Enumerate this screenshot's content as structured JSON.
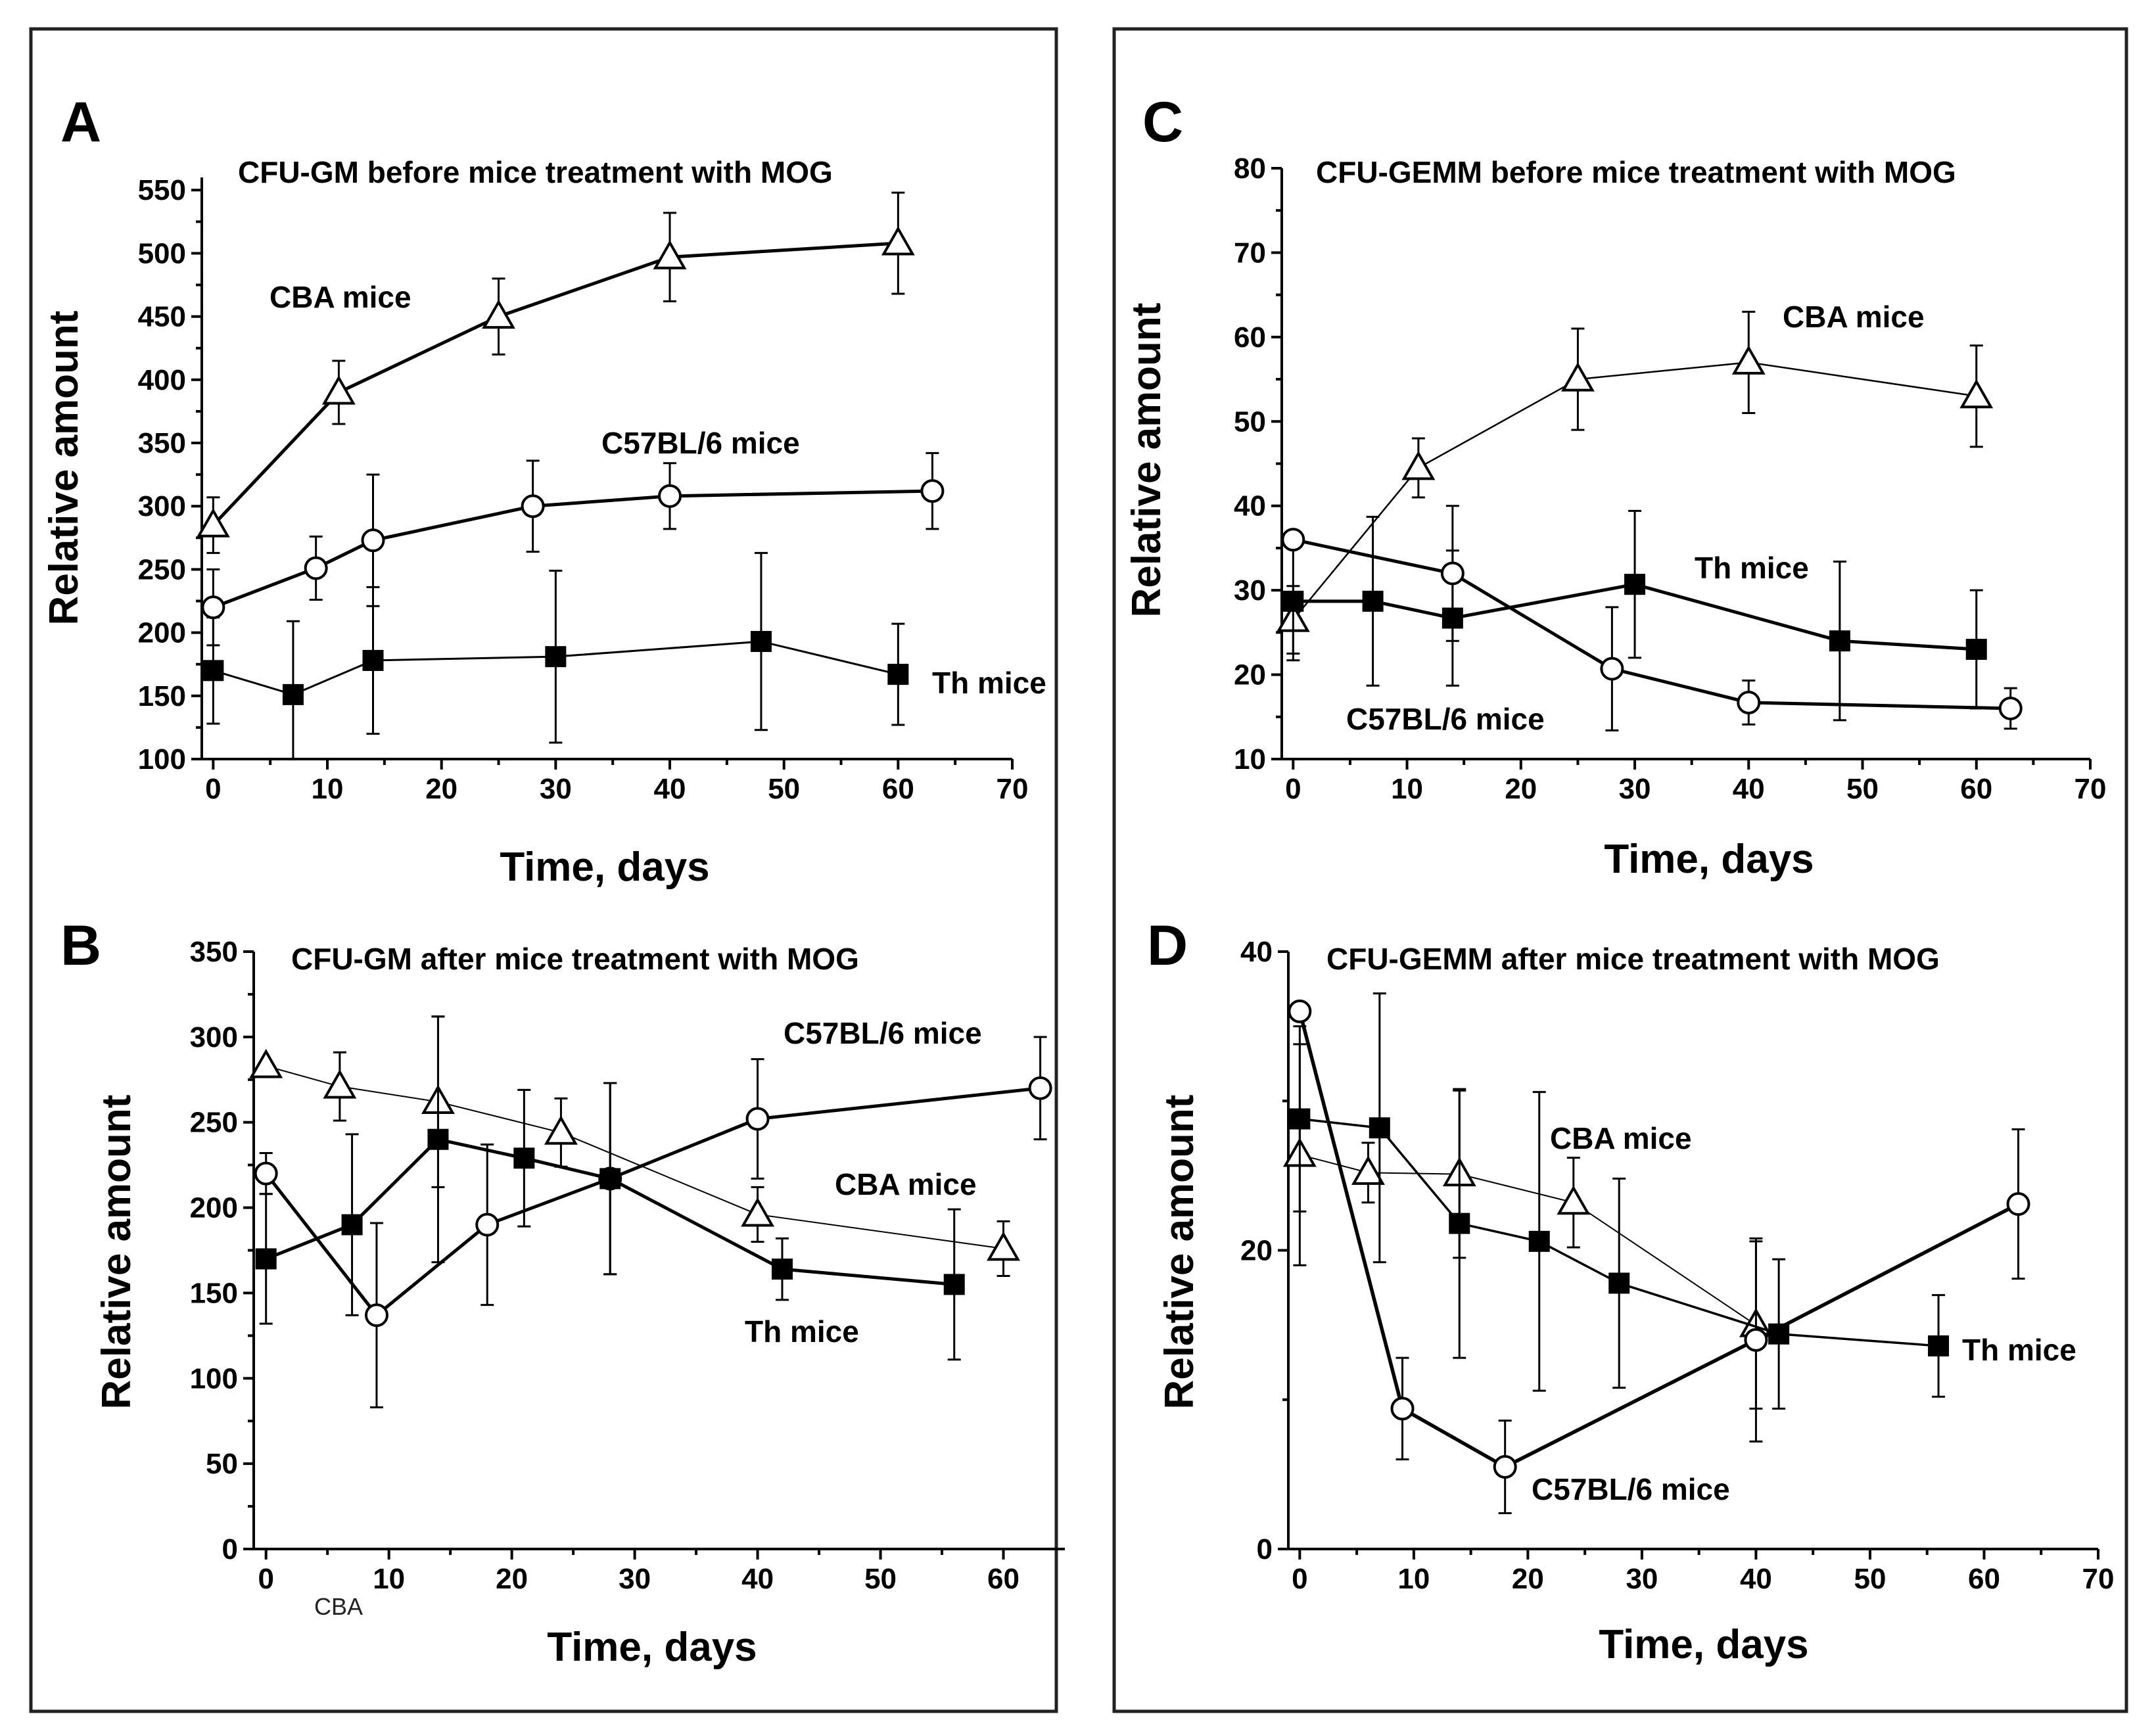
{
  "colors": {
    "ink": "#000000",
    "frame": "#222222",
    "marker_fill_open": "#ffffff",
    "marker_fill_solid": "#000000"
  },
  "chart_data": [
    {
      "panel": "A",
      "type": "line",
      "title": "CFU-GM before  mice treatment with MOG",
      "xlabel": "Time, days",
      "ylabel": "Relative amount",
      "xlim": [
        -1,
        70
      ],
      "ylim": [
        100,
        560
      ],
      "xticks": [
        0,
        10,
        20,
        30,
        40,
        50,
        60,
        70
      ],
      "yticks": [
        100,
        150,
        200,
        250,
        300,
        350,
        400,
        450,
        500,
        550
      ],
      "series": [
        {
          "name": "CBA mice",
          "marker": "triangle-open",
          "linewidth": 5,
          "x": [
            0,
            11,
            25,
            40,
            60
          ],
          "y": [
            285,
            390,
            450,
            497,
            508
          ],
          "err": [
            22,
            25,
            30,
            35,
            40
          ]
        },
        {
          "name": "C57BL/6 mice",
          "marker": "circle-open",
          "linewidth": 5,
          "x": [
            0,
            9,
            14,
            28,
            40,
            63
          ],
          "y": [
            220,
            251,
            273,
            300,
            308,
            312
          ],
          "err": [
            30,
            25,
            52,
            36,
            26,
            30
          ]
        },
        {
          "name": "Th mice",
          "marker": "square-filled",
          "linewidth": 3,
          "x": [
            0,
            7,
            14,
            30,
            48,
            60
          ],
          "y": [
            170,
            151,
            178,
            181,
            193,
            167
          ],
          "err": [
            42,
            58,
            58,
            68,
            70,
            40
          ]
        }
      ]
    },
    {
      "panel": "B",
      "type": "line",
      "title": "CFU-GM after  mice treatment with MOG",
      "xlabel": "Time, days",
      "ylabel": "Relative amount",
      "note": "CBA",
      "xlim": [
        -1,
        65
      ],
      "ylim": [
        0,
        350
      ],
      "xticks": [
        0,
        10,
        20,
        30,
        40,
        50,
        60
      ],
      "yticks": [
        0,
        50,
        100,
        150,
        200,
        250,
        300,
        350
      ],
      "series": [
        {
          "name": "CBA mice",
          "marker": "triangle-open",
          "linewidth": 2,
          "x": [
            0,
            6,
            14,
            24,
            40,
            60
          ],
          "y": [
            283,
            271,
            262,
            244,
            196,
            176
          ],
          "err": [
            0,
            20,
            50,
            20,
            16,
            16
          ]
        },
        {
          "name": "C57BL/6 mice",
          "marker": "circle-open",
          "linewidth": 5,
          "x": [
            0,
            9,
            18,
            28,
            40,
            63
          ],
          "y": [
            220,
            137,
            190,
            217,
            252,
            270
          ],
          "err": [
            12,
            54,
            47,
            56,
            35,
            30
          ]
        },
        {
          "name": "Th mice",
          "marker": "square-filled",
          "linewidth": 5,
          "x": [
            0,
            7,
            14,
            21,
            28,
            42,
            56
          ],
          "y": [
            170,
            190,
            240,
            229,
            217,
            164,
            155
          ],
          "err": [
            38,
            53,
            72,
            40,
            56,
            18,
            44
          ]
        }
      ]
    },
    {
      "panel": "C",
      "type": "line",
      "title": "CFU-GEMM before  mice treatment with MOG",
      "xlabel": "Time, days",
      "ylabel": "Relative amount",
      "xlim": [
        -1,
        70
      ],
      "ylim": [
        10,
        80
      ],
      "xticks": [
        0,
        10,
        20,
        30,
        40,
        50,
        60,
        70
      ],
      "yticks": [
        10,
        20,
        30,
        40,
        50,
        60,
        70,
        80
      ],
      "series": [
        {
          "name": "CBA mice",
          "marker": "triangle-open",
          "linewidth": 2.5,
          "x": [
            0,
            11,
            25,
            40,
            60
          ],
          "y": [
            26.5,
            44.5,
            55,
            57,
            53
          ],
          "err": [
            4,
            3.5,
            6,
            6,
            6
          ]
        },
        {
          "name": "Th mice",
          "marker": "square-filled",
          "linewidth": 5,
          "x": [
            0,
            7,
            14,
            30,
            48,
            60
          ],
          "y": [
            28.7,
            28.7,
            26.7,
            30.7,
            24,
            23
          ],
          "err": [
            7,
            10,
            8,
            8.7,
            9.4,
            7
          ]
        },
        {
          "name": "C57BL/6 mice",
          "marker": "circle-open",
          "linewidth": 5,
          "x": [
            0,
            14,
            28,
            40,
            63
          ],
          "y": [
            36,
            32,
            20.7,
            16.7,
            16
          ],
          "err": [
            0,
            8,
            7.3,
            2.6,
            2.4
          ]
        }
      ]
    },
    {
      "panel": "D",
      "type": "line",
      "title": "CFU-GEMM after  mice treatment with MOG",
      "xlabel": "Time, days",
      "ylabel": "Relative amount",
      "xlim": [
        -1,
        70
      ],
      "ylim": [
        0,
        40
      ],
      "xticks": [
        0,
        10,
        20,
        30,
        40,
        50,
        60,
        70
      ],
      "yticks": [
        0,
        20,
        40
      ],
      "series": [
        {
          "name": "CBA mice",
          "marker": "triangle-open",
          "linewidth": 2,
          "x": [
            0,
            6,
            14,
            24,
            40
          ],
          "y": [
            26.4,
            25.2,
            25.1,
            23.2,
            15
          ],
          "err": [
            7.4,
            2,
            5.6,
            3,
            5.6
          ]
        },
        {
          "name": "Th mice",
          "marker": "square-filled",
          "linewidth": 3.5,
          "x": [
            0,
            7,
            14,
            21,
            28,
            42,
            56
          ],
          "y": [
            28.8,
            28.2,
            21.8,
            20.6,
            17.8,
            14.4,
            13.6
          ],
          "err": [
            6.2,
            9,
            9,
            10,
            7,
            5,
            3.4
          ]
        },
        {
          "name": "C57BL/6 mice",
          "marker": "circle-open",
          "linewidth": 5.5,
          "x": [
            0,
            9,
            18,
            40,
            63
          ],
          "y": [
            36,
            9.4,
            5.5,
            14,
            23.1
          ],
          "err": [
            0,
            3.4,
            3.1,
            6.8,
            5
          ]
        }
      ]
    }
  ]
}
